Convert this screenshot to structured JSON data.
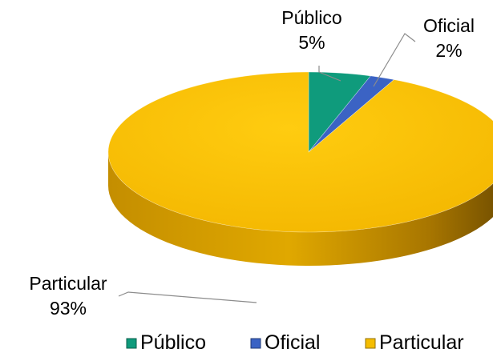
{
  "chart_data": {
    "type": "pie",
    "style": "3d",
    "slices": [
      {
        "name": "Público",
        "value": 5,
        "label": "5%",
        "color": "#0f9b7c"
      },
      {
        "name": "Oficial",
        "value": 2,
        "label": "2%",
        "color": "#3b63c4"
      },
      {
        "name": "Particular",
        "value": 93,
        "label": "93%",
        "color": "#f5bd00"
      }
    ],
    "legend": {
      "position": "bottom",
      "entries": [
        "Público",
        "Oficial",
        "Particular"
      ]
    }
  }
}
